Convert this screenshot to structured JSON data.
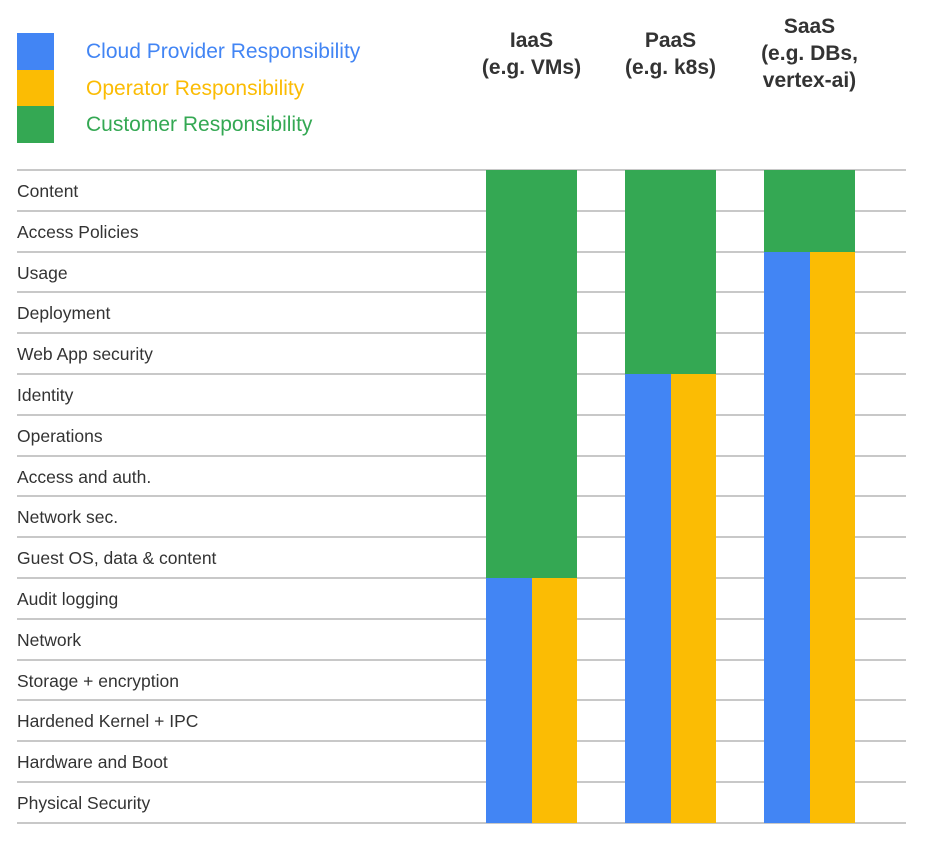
{
  "colors": {
    "cloud": "#4285F4",
    "operator": "#FBBC04",
    "customer": "#34A853"
  },
  "legend": [
    {
      "label": "Cloud Provider Responsibility",
      "color": "#4285F4"
    },
    {
      "label": "Operator Responsibility",
      "color": "#FBBC04"
    },
    {
      "label": "Customer Responsibility",
      "color": "#34A853"
    }
  ],
  "rows": [
    "Content",
    "Access Policies",
    "Usage",
    "Deployment",
    "Web App security",
    "Identity",
    "Operations",
    "Access and auth.",
    "Network sec.",
    "Guest OS, data & content",
    "Audit logging",
    "Network",
    "Storage + encryption",
    "Hardened Kernel + IPC",
    "Hardware and Boot",
    "Physical Security"
  ],
  "columns": [
    {
      "lines": [
        "IaaS",
        "(e.g. VMs)"
      ],
      "customer_rows": 10
    },
    {
      "lines": [
        "PaaS",
        "(e.g. k8s)"
      ],
      "customer_rows": 5
    },
    {
      "lines": [
        "SaaS",
        "(e.g. DBs,",
        "vertex-ai)"
      ],
      "customer_rows": 2
    }
  ]
}
